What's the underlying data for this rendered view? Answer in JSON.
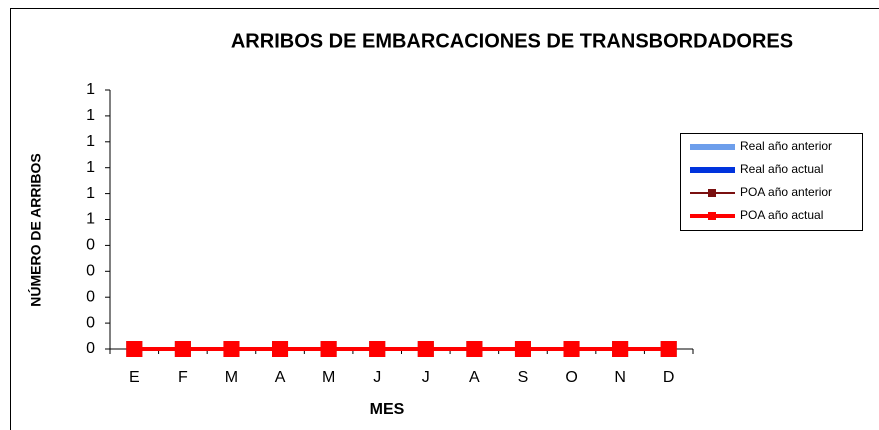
{
  "chart_data": {
    "type": "combo",
    "title": "ARRIBOS DE EMBARCACIONES DE TRANSBORDADORES",
    "x_label": "MES",
    "y_label": "NÚMERO DE ARRIBOS",
    "categories": [
      "E",
      "F",
      "M",
      "A",
      "M",
      "J",
      "J",
      "A",
      "S",
      "O",
      "N",
      "D"
    ],
    "series": [
      {
        "name": "Real año anterior",
        "type": "bar",
        "color": "#6d9eeb",
        "values": [
          0,
          0,
          0,
          0,
          0,
          0,
          0,
          0,
          0,
          0,
          0,
          0
        ]
      },
      {
        "name": "Real año actual",
        "type": "bar",
        "color": "#0033dd",
        "values": [
          0,
          0,
          0,
          0,
          0,
          0,
          0,
          0,
          0,
          0,
          0,
          0
        ]
      },
      {
        "name": "POA año anterior",
        "type": "line",
        "color": "#7a1010",
        "values": [
          0,
          0,
          0,
          0,
          0,
          0,
          0,
          0,
          0,
          0,
          0,
          0
        ]
      },
      {
        "name": "POA año actual",
        "type": "line",
        "color": "#ff0000",
        "values": [
          0,
          0,
          0,
          0,
          0,
          0,
          0,
          0,
          0,
          0,
          0,
          0
        ]
      }
    ],
    "ylim": [
      0,
      1
    ],
    "yticks": [
      0,
      {
        "value": 0.1,
        "label": "0"
      },
      {
        "value": 0.2,
        "label": "0"
      },
      {
        "value": 0.3,
        "label": "0"
      },
      {
        "value": 0.4,
        "label": "0"
      },
      {
        "value": 0.5,
        "label": "1"
      },
      {
        "value": 0.6,
        "label": "1"
      },
      {
        "value": 0.7,
        "label": "1"
      },
      {
        "value": 0.8,
        "label": "1"
      },
      {
        "value": 0.9,
        "label": "1"
      },
      1
    ],
    "legend": "right"
  }
}
